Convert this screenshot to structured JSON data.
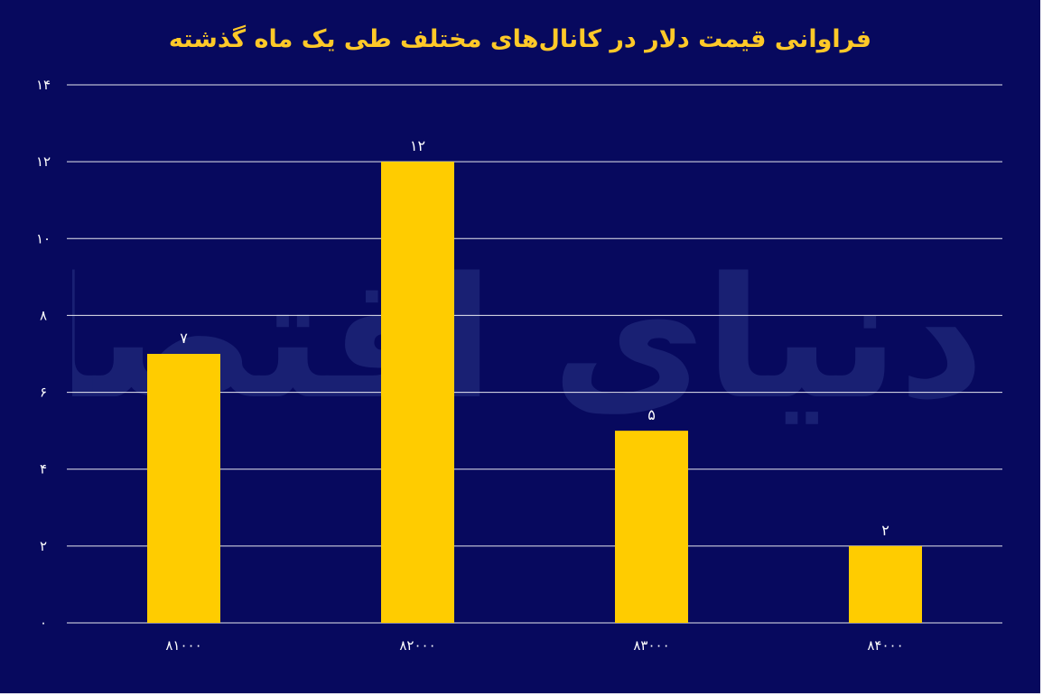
{
  "chart_data": {
    "type": "bar",
    "title": "فراوانی قیمت دلار در کانال‌های مختلف طی یک ماه گذشته",
    "categories": [
      "۸۱۰۰۰",
      "۸۲۰۰۰",
      "۸۳۰۰۰",
      "۸۴۰۰۰"
    ],
    "values": [
      7,
      12,
      5,
      2
    ],
    "value_labels": [
      "۷",
      "۱۲",
      "۵",
      "۲"
    ],
    "ylim": [
      0,
      14
    ],
    "yticks": [
      0,
      2,
      4,
      6,
      8,
      10,
      12,
      14
    ],
    "ytick_labels": [
      "۰",
      "۲",
      "۴",
      "۶",
      "۸",
      "۱۰",
      "۱۲",
      "۱۴"
    ],
    "grid": true,
    "legend": "none",
    "bar_color": "#ffcc00",
    "background_color": "#07095e",
    "title_color": "#ffc928"
  },
  "watermark": "دنیای اقتصاد"
}
